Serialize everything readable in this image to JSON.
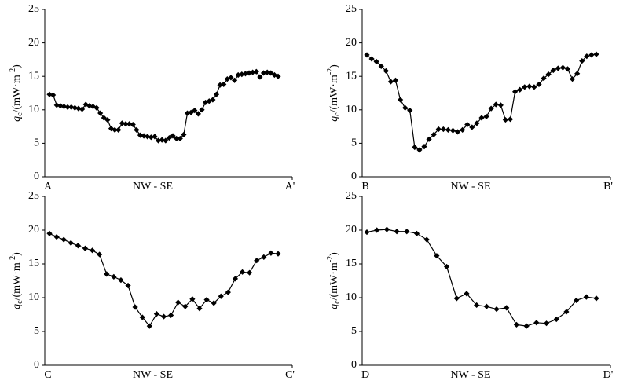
{
  "chart_data": [
    {
      "type": "line",
      "x_start_label": "A",
      "xlabel": "NW - SE",
      "x_end_label": "A'",
      "ylabel": {
        "symbol": "q",
        "subscript": "c",
        "unit": "/(mW·m",
        "exponent": "-2",
        "close": ")"
      },
      "ylim": [
        0,
        25
      ],
      "yticks": [
        0,
        5,
        10,
        15,
        20,
        25
      ],
      "color": "#000000",
      "values": [
        12.3,
        12.2,
        10.7,
        10.6,
        10.5,
        10.4,
        10.4,
        10.3,
        10.2,
        10.1,
        10.8,
        10.6,
        10.5,
        10.3,
        9.5,
        8.8,
        8.5,
        7.2,
        7.0,
        7.0,
        8.0,
        7.9,
        7.9,
        7.8,
        7.0,
        6.2,
        6.1,
        6.0,
        5.9,
        6.0,
        5.4,
        5.5,
        5.4,
        5.8,
        6.1,
        5.7,
        5.7,
        6.3,
        9.5,
        9.6,
        9.9,
        9.4,
        10.0,
        11.1,
        11.3,
        11.5,
        12.3,
        13.7,
        13.8,
        14.6,
        14.8,
        14.4,
        15.2,
        15.3,
        15.4,
        15.5,
        15.6,
        15.7,
        14.9,
        15.5,
        15.6,
        15.5,
        15.2,
        15.0
      ]
    },
    {
      "type": "line",
      "x_start_label": "B",
      "xlabel": "NW - SE",
      "x_end_label": "B'",
      "ylabel": {
        "symbol": "q",
        "subscript": "c",
        "unit": "/(mW·m",
        "exponent": "-2",
        "close": ")"
      },
      "ylim": [
        0,
        25
      ],
      "yticks": [
        0,
        5,
        10,
        15,
        20,
        25
      ],
      "color": "#000000",
      "values": [
        18.2,
        17.6,
        17.2,
        16.5,
        15.8,
        14.2,
        14.4,
        11.5,
        10.3,
        9.9,
        4.4,
        4.0,
        4.5,
        5.6,
        6.3,
        7.1,
        7.1,
        7.0,
        6.9,
        6.7,
        7.0,
        7.8,
        7.4,
        8.0,
        8.8,
        9.0,
        10.2,
        10.8,
        10.7,
        8.5,
        8.6,
        12.7,
        13.0,
        13.4,
        13.5,
        13.4,
        13.8,
        14.7,
        15.3,
        15.9,
        16.2,
        16.3,
        16.1,
        14.6,
        15.4,
        17.3,
        18.0,
        18.2,
        18.3
      ]
    },
    {
      "type": "line",
      "x_start_label": "C",
      "xlabel": "NW - SE",
      "x_end_label": "C'",
      "ylabel": {
        "symbol": "q",
        "subscript": "c",
        "unit": "/(mW·m",
        "exponent": "-2",
        "close": ")"
      },
      "ylim": [
        0,
        25
      ],
      "yticks": [
        0,
        5,
        10,
        15,
        20,
        25
      ],
      "color": "#000000",
      "values": [
        19.5,
        19.0,
        18.6,
        18.1,
        17.7,
        17.3,
        17.0,
        16.4,
        13.5,
        13.1,
        12.6,
        11.8,
        8.6,
        7.1,
        5.8,
        7.6,
        7.2,
        7.4,
        9.3,
        8.7,
        9.8,
        8.4,
        9.7,
        9.2,
        10.2,
        10.8,
        12.8,
        13.8,
        13.7,
        15.5,
        16.0,
        16.6,
        16.5
      ]
    },
    {
      "type": "line",
      "x_start_label": "D",
      "xlabel": "NW - SE",
      "x_end_label": "D'",
      "ylabel": {
        "symbol": "q",
        "subscript": "c",
        "unit": "/(mW·m",
        "exponent": "-2",
        "close": ")"
      },
      "ylim": [
        0,
        25
      ],
      "yticks": [
        0,
        5,
        10,
        15,
        20,
        25
      ],
      "color": "#000000",
      "values": [
        19.7,
        20.0,
        20.1,
        19.8,
        19.8,
        19.5,
        18.6,
        16.2,
        14.6,
        9.9,
        10.6,
        8.9,
        8.7,
        8.3,
        8.5,
        6.0,
        5.8,
        6.3,
        6.2,
        6.8,
        7.9,
        9.6,
        10.1,
        9.9
      ]
    }
  ]
}
